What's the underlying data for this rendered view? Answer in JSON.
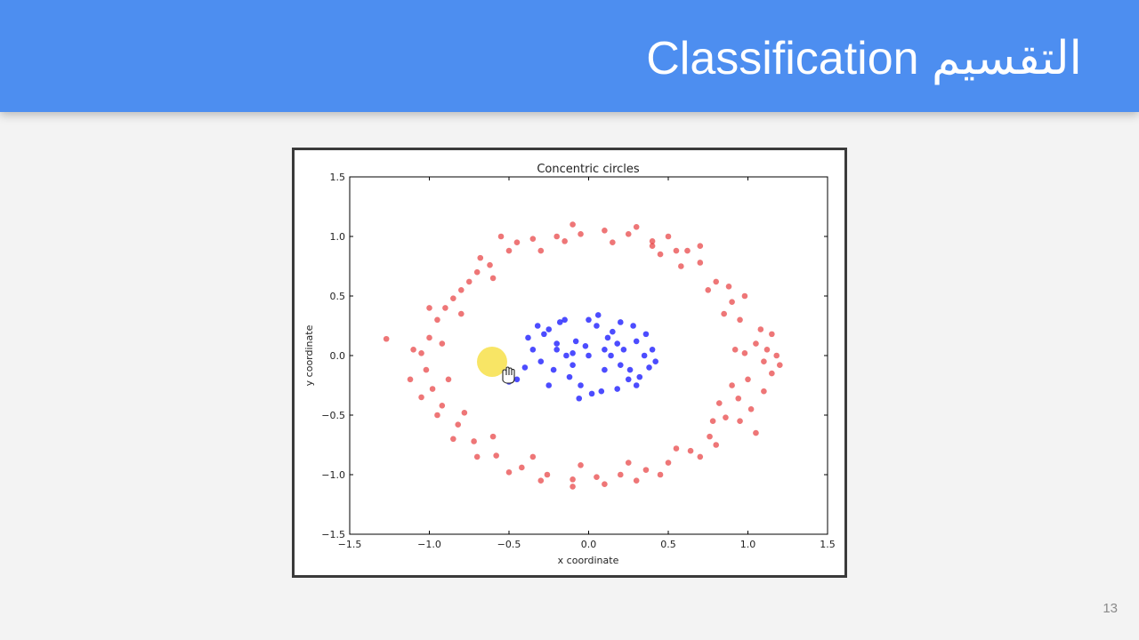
{
  "slide": {
    "title": "Classification التقسيم",
    "page_number": "13"
  },
  "colors": {
    "header": "#4d8ef0",
    "outer_class": "#e31a1c",
    "inner_class": "#0000ff",
    "cursor_highlight": "#f7e04a"
  },
  "icons": {
    "cursor": "hand-cursor-icon"
  },
  "chart_data": {
    "type": "scatter",
    "title": "Concentric circles",
    "xlabel": "x coordinate",
    "ylabel": "y coordinate",
    "xlim": [
      -1.5,
      1.5
    ],
    "ylim": [
      -1.5,
      1.5
    ],
    "xticks": [
      "−1.5",
      "−1.0",
      "−0.5",
      "0.0",
      "0.5",
      "1.0",
      "1.5"
    ],
    "yticks": [
      "−1.5",
      "−1.0",
      "−0.5",
      "0.0",
      "0.5",
      "1.0",
      "1.5"
    ],
    "grid": false,
    "legend": "none",
    "series": [
      {
        "color": "#e31a1c",
        "points": [
          [
            0.98,
            0.02
          ],
          [
            1.05,
            0.1
          ],
          [
            1.1,
            -0.05
          ],
          [
            0.95,
            0.3
          ],
          [
            0.9,
            0.45
          ],
          [
            0.8,
            0.62
          ],
          [
            0.7,
            0.78
          ],
          [
            0.55,
            0.88
          ],
          [
            0.4,
            0.96
          ],
          [
            0.25,
            1.02
          ],
          [
            0.1,
            1.05
          ],
          [
            -0.05,
            1.02
          ],
          [
            -0.2,
            1.0
          ],
          [
            -0.35,
            0.98
          ],
          [
            -0.5,
            0.88
          ],
          [
            -0.62,
            0.76
          ],
          [
            -0.75,
            0.62
          ],
          [
            -0.85,
            0.48
          ],
          [
            -0.95,
            0.3
          ],
          [
            -1.0,
            0.15
          ],
          [
            -1.05,
            0.02
          ],
          [
            -1.02,
            -0.12
          ],
          [
            -0.98,
            -0.28
          ],
          [
            -0.92,
            -0.42
          ],
          [
            -0.82,
            -0.58
          ],
          [
            -0.72,
            -0.72
          ],
          [
            -0.58,
            -0.84
          ],
          [
            -0.42,
            -0.94
          ],
          [
            -0.26,
            -1.0
          ],
          [
            -0.1,
            -1.04
          ],
          [
            0.05,
            -1.02
          ],
          [
            0.2,
            -1.0
          ],
          [
            0.36,
            -0.96
          ],
          [
            0.5,
            -0.9
          ],
          [
            0.64,
            -0.8
          ],
          [
            0.76,
            -0.68
          ],
          [
            0.86,
            -0.52
          ],
          [
            0.94,
            -0.36
          ],
          [
            1.0,
            -0.2
          ],
          [
            1.08,
            0.22
          ],
          [
            1.12,
            0.05
          ],
          [
            1.15,
            -0.15
          ],
          [
            0.88,
            0.58
          ],
          [
            0.62,
            0.88
          ],
          [
            0.3,
            1.08
          ],
          [
            -0.1,
            1.1
          ],
          [
            -0.45,
            0.95
          ],
          [
            -0.7,
            0.7
          ],
          [
            -0.9,
            0.4
          ],
          [
            -1.1,
            0.05
          ],
          [
            -1.27,
            0.14
          ],
          [
            -1.05,
            -0.35
          ],
          [
            -0.85,
            -0.7
          ],
          [
            -0.5,
            -0.98
          ],
          [
            -0.1,
            -1.1
          ],
          [
            0.3,
            -1.05
          ],
          [
            0.7,
            -0.85
          ],
          [
            0.95,
            -0.55
          ],
          [
            1.1,
            -0.3
          ],
          [
            1.05,
            -0.65
          ],
          [
            0.85,
            0.35
          ],
          [
            0.75,
            0.55
          ],
          [
            0.58,
            0.75
          ],
          [
            0.45,
            0.85
          ],
          [
            0.15,
            0.95
          ],
          [
            -0.3,
            0.88
          ],
          [
            -0.6,
            0.65
          ],
          [
            -0.8,
            0.35
          ],
          [
            -0.92,
            0.1
          ],
          [
            -0.88,
            -0.2
          ],
          [
            -0.78,
            -0.48
          ],
          [
            -0.6,
            -0.68
          ],
          [
            -0.35,
            -0.85
          ],
          [
            -0.05,
            -0.92
          ],
          [
            0.25,
            -0.9
          ],
          [
            0.55,
            -0.78
          ],
          [
            0.78,
            -0.55
          ],
          [
            0.9,
            -0.25
          ],
          [
            0.92,
            0.05
          ],
          [
            0.82,
            -0.4
          ],
          [
            1.18,
            0.0
          ],
          [
            1.2,
            -0.08
          ],
          [
            0.7,
            0.92
          ],
          [
            0.5,
            1.0
          ],
          [
            -0.55,
            1.0
          ],
          [
            -0.8,
            0.55
          ],
          [
            -1.0,
            0.4
          ],
          [
            -1.12,
            -0.2
          ],
          [
            -0.95,
            -0.5
          ],
          [
            -0.7,
            -0.85
          ],
          [
            -0.3,
            -1.05
          ],
          [
            0.1,
            -1.08
          ],
          [
            0.45,
            -1.0
          ],
          [
            0.8,
            -0.75
          ],
          [
            1.02,
            -0.45
          ],
          [
            1.15,
            0.18
          ],
          [
            0.98,
            0.5
          ],
          [
            0.4,
            0.92
          ],
          [
            -0.15,
            0.96
          ],
          [
            -0.68,
            0.82
          ]
        ]
      },
      {
        "color": "#0000ff",
        "points": [
          [
            0.0,
            0.0
          ],
          [
            0.1,
            0.05
          ],
          [
            -0.1,
            0.02
          ],
          [
            0.2,
            -0.08
          ],
          [
            -0.2,
            0.1
          ],
          [
            0.3,
            0.12
          ],
          [
            -0.3,
            -0.05
          ],
          [
            0.15,
            0.2
          ],
          [
            -0.12,
            -0.18
          ],
          [
            0.25,
            -0.2
          ],
          [
            -0.25,
            0.22
          ],
          [
            0.35,
            0.0
          ],
          [
            -0.35,
            0.05
          ],
          [
            0.05,
            0.25
          ],
          [
            -0.05,
            -0.25
          ],
          [
            0.18,
            -0.28
          ],
          [
            -0.18,
            0.28
          ],
          [
            0.38,
            -0.1
          ],
          [
            -0.38,
            0.15
          ],
          [
            0.28,
            0.25
          ],
          [
            0.0,
            0.3
          ],
          [
            0.02,
            -0.32
          ],
          [
            0.12,
            0.15
          ],
          [
            -0.08,
            0.12
          ],
          [
            0.22,
            0.05
          ],
          [
            -0.22,
            -0.12
          ],
          [
            0.32,
            -0.18
          ],
          [
            -0.28,
            0.18
          ],
          [
            0.1,
            -0.12
          ],
          [
            -0.02,
            0.08
          ],
          [
            0.4,
            0.05
          ],
          [
            -0.4,
            -0.1
          ],
          [
            0.08,
            -0.3
          ],
          [
            -0.15,
            0.3
          ],
          [
            0.2,
            0.28
          ],
          [
            -0.25,
            -0.25
          ],
          [
            0.3,
            -0.25
          ],
          [
            -0.32,
            0.25
          ],
          [
            0.14,
            0.0
          ],
          [
            -0.14,
            0.0
          ],
          [
            0.36,
            0.18
          ],
          [
            -0.45,
            -0.2
          ],
          [
            -0.5,
            -0.22
          ],
          [
            0.42,
            -0.05
          ],
          [
            0.06,
            0.34
          ],
          [
            -0.06,
            -0.36
          ],
          [
            0.26,
            -0.12
          ],
          [
            -0.2,
            0.05
          ],
          [
            0.18,
            0.1
          ],
          [
            -0.1,
            -0.08
          ]
        ]
      }
    ]
  }
}
